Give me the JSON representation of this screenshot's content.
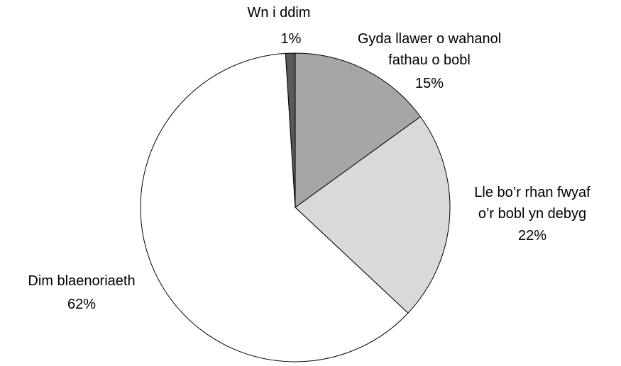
{
  "chart_data": {
    "type": "pie",
    "categories": [
      "Gyda llawer o wahanol\nfathau o bobl",
      "Lle bo’r rhan fwyaf\no’r bobl yn debyg",
      "Dim blaenoriaeth",
      "Wn i ddim"
    ],
    "values": [
      15,
      22,
      62,
      1
    ],
    "value_labels": [
      "15%",
      "22%",
      "62%",
      "1%"
    ],
    "colors": [
      "#a6a6a6",
      "#d9d9d9",
      "#ffffff",
      "#595959"
    ]
  }
}
